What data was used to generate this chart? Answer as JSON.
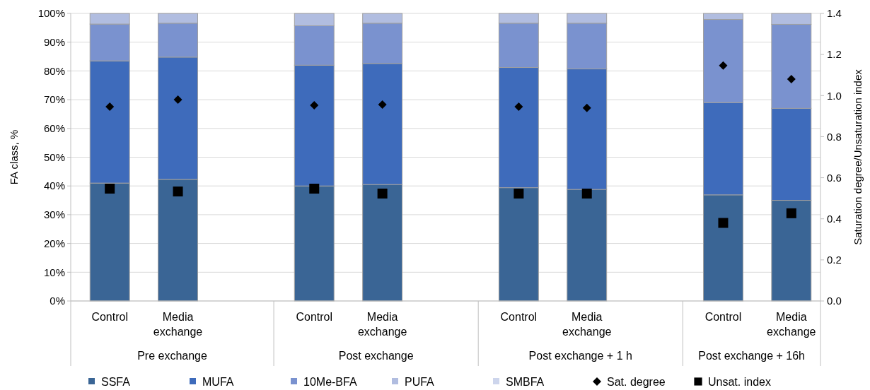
{
  "chart_data": {
    "type": "bar",
    "stacked": true,
    "ylabel": "FA class, %",
    "y2label": "Saturation degree/Unsaturation index",
    "categories": [
      "Control",
      "Media exchange",
      null,
      "Control",
      "Media exchange",
      null,
      "Control",
      "Media exchange",
      null,
      "Control",
      "Media exchange"
    ],
    "annotations": [
      "Pre exchange",
      "Post exchange",
      "Post exchange + 1 h",
      "Post exchange + 16h"
    ],
    "series": [
      {
        "name": "SSFA",
        "color": "#3a6595",
        "values": [
          41.0,
          42.3,
          null,
          40.0,
          40.5,
          null,
          39.4,
          38.8,
          null,
          36.9,
          35.0
        ]
      },
      {
        "name": "MUFA",
        "color": "#3e6bbb",
        "values": [
          42.5,
          42.5,
          null,
          42.0,
          42.1,
          null,
          41.8,
          41.9,
          null,
          32.1,
          32.0
        ]
      },
      {
        "name": "10Me-BFA",
        "color": "#7a92cf",
        "values": [
          12.8,
          11.8,
          null,
          13.7,
          14.0,
          null,
          15.4,
          15.9,
          null,
          28.9,
          29.2
        ]
      },
      {
        "name": "PUFA",
        "color": "#b1bde0",
        "values": [
          3.7,
          3.4,
          null,
          4.3,
          3.4,
          null,
          3.4,
          3.4,
          null,
          2.1,
          3.8
        ]
      },
      {
        "name": "SMBFA",
        "color": "#cdd5ec",
        "values": [
          0,
          0,
          null,
          0,
          0,
          null,
          0,
          0,
          null,
          0,
          0
        ]
      },
      {
        "name": "Sat. degree",
        "type": "scatter",
        "axis": "y2",
        "marker": "diamond",
        "color": "#000000",
        "values": [
          0.946,
          0.98,
          null,
          0.953,
          0.956,
          null,
          0.946,
          0.94,
          null,
          1.146,
          1.08
        ]
      },
      {
        "name": "Unsat. index",
        "type": "scatter",
        "axis": "y2",
        "marker": "square",
        "color": "#000000",
        "values": [
          0.547,
          0.533,
          null,
          0.547,
          0.523,
          null,
          0.523,
          0.523,
          null,
          0.38,
          0.427
        ]
      }
    ],
    "ylim": [
      0,
      100
    ],
    "yticks": [
      {
        "value": 0,
        "label": "0%"
      },
      {
        "value": 10,
        "label": "10%"
      },
      {
        "value": 20,
        "label": "20%"
      },
      {
        "value": 30,
        "label": "30%"
      },
      {
        "value": 40,
        "label": "40%"
      },
      {
        "value": 50,
        "label": "50%"
      },
      {
        "value": 60,
        "label": "60%"
      },
      {
        "value": 70,
        "label": "70%"
      },
      {
        "value": 80,
        "label": "80%"
      },
      {
        "value": 90,
        "label": "90%"
      },
      {
        "value": 100,
        "label": "100%"
      }
    ],
    "y2lim": [
      0,
      1.4
    ],
    "y2ticks": [
      {
        "value": 0,
        "label": "0.0"
      },
      {
        "value": 0.2,
        "label": "0.2"
      },
      {
        "value": 0.4,
        "label": "0.4"
      },
      {
        "value": 0.6,
        "label": "0.6"
      },
      {
        "value": 0.8,
        "label": "0.8"
      },
      {
        "value": 1,
        "label": "1.0"
      },
      {
        "value": 1.2,
        "label": "1.2"
      },
      {
        "value": 1.4,
        "label": "1.4"
      }
    ],
    "grid": "y",
    "legend": "bottom"
  }
}
